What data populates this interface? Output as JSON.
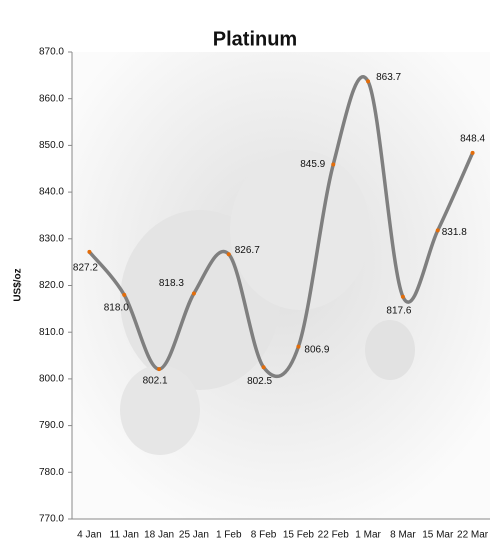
{
  "chart_data": {
    "type": "line",
    "title": "Platinum",
    "y_label": "US$/oz",
    "categories": [
      "4 Jan",
      "11 Jan",
      "18 Jan",
      "25 Jan",
      "1 Feb",
      "8 Feb",
      "15 Feb",
      "22 Feb",
      "1 Mar",
      "8 Mar",
      "15 Mar",
      "22 Mar"
    ],
    "series": [
      {
        "name": "Platinum",
        "color": "#7f7f7f",
        "marker_color": "#e36c09",
        "values": [
          827.2,
          818.0,
          802.1,
          818.3,
          826.7,
          802.5,
          806.9,
          845.9,
          863.7,
          817.6,
          831.8,
          848.4
        ],
        "value_labels": [
          "827.2",
          "818.0",
          "802.1",
          "818.3",
          "826.7",
          "802.5",
          "806.9",
          "845.9",
          "863.7",
          "817.6",
          "831.8",
          "848.4"
        ]
      }
    ],
    "ylim": [
      770,
      870
    ],
    "yticks": [
      {
        "value": 770,
        "label": "770.0"
      },
      {
        "value": 780,
        "label": "780.0"
      },
      {
        "value": 790,
        "label": "790.0"
      },
      {
        "value": 800,
        "label": "800.0"
      },
      {
        "value": 810,
        "label": "810.0"
      },
      {
        "value": 820,
        "label": "820.0"
      },
      {
        "value": 830,
        "label": "830.0"
      },
      {
        "value": 840,
        "label": "840.0"
      },
      {
        "value": 850,
        "label": "850.0"
      },
      {
        "value": 860,
        "label": "860.0"
      },
      {
        "value": 870,
        "label": "870.0"
      }
    ],
    "smooth": true
  }
}
